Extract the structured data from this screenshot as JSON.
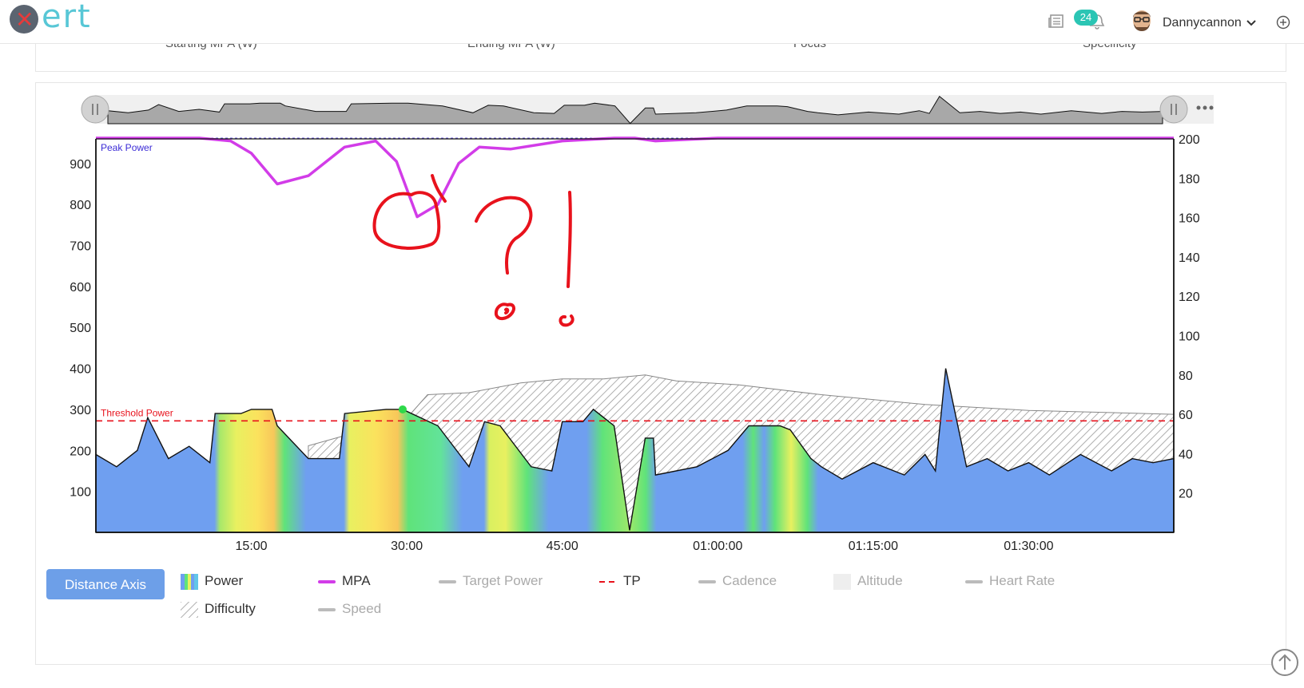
{
  "header": {
    "logo_text": "ert",
    "notification_count": "24",
    "username": "Dannycannon",
    "icons": [
      "news-icon",
      "bell-icon",
      "avatar",
      "chevron-down-icon",
      "add-circle-icon"
    ]
  },
  "prev_card": {
    "labels": [
      "Starting MPA (W)",
      "Ending MPA (W)",
      "Focus",
      "Specificity"
    ]
  },
  "chart_data": {
    "type": "area",
    "x_tick_labels": [
      "15:00",
      "30:00",
      "45:00",
      "01:00:00",
      "01:15:00",
      "01:30:00"
    ],
    "x_tick_minutes": [
      15,
      30,
      45,
      60,
      75,
      90
    ],
    "x_range_minutes": [
      0,
      104
    ],
    "y_left": {
      "ticks": [
        100,
        200,
        300,
        400,
        500,
        600,
        700,
        800,
        900
      ],
      "range": [
        0,
        960
      ]
    },
    "y_right": {
      "ticks": [
        20,
        40,
        60,
        80,
        100,
        120,
        140,
        160,
        180,
        200
      ],
      "range": [
        0,
        200
      ]
    },
    "annotations": [
      "Peak Power",
      "Threshold Power"
    ],
    "peak_power_w": 962,
    "threshold_power_w": 272,
    "series": [
      {
        "name": "MPA",
        "color": "#d23ce8",
        "x": [
          0,
          10,
          13,
          15,
          17.5,
          20.5,
          24,
          27,
          29,
          31,
          33,
          35,
          37,
          40,
          45,
          50,
          52,
          54,
          60,
          70,
          80,
          95,
          104
        ],
        "y": [
          962,
          962,
          955,
          925,
          850,
          870,
          940,
          955,
          905,
          770,
          800,
          900,
          940,
          935,
          955,
          962,
          962,
          955,
          962,
          962,
          962,
          962,
          962
        ]
      },
      {
        "name": "Difficulty",
        "color": "#999999",
        "x": [
          20.5,
          30,
          32,
          36,
          41,
          45,
          49,
          53,
          56,
          62,
          70,
          80,
          90,
          104
        ],
        "y": [
          44,
          58,
          70,
          71,
          76,
          78,
          78,
          80,
          77,
          75,
          70,
          65,
          62,
          60
        ]
      },
      {
        "name": "Power",
        "x": [
          0,
          2,
          4,
          5,
          7,
          9,
          11,
          11.5,
          14,
          15,
          17,
          17.5,
          20.5,
          23.5,
          24,
          28,
          29,
          29.6,
          33,
          36,
          37.5,
          39,
          42,
          44,
          45,
          47,
          48,
          50,
          51.5,
          53,
          53.8,
          54,
          58,
          61,
          63,
          66,
          67,
          69,
          70,
          72,
          75,
          78,
          80,
          81,
          82,
          84,
          86,
          88,
          90,
          92,
          95,
          98,
          100,
          102,
          104
        ],
        "y": [
          190,
          160,
          200,
          280,
          180,
          210,
          170,
          290,
          290,
          300,
          300,
          260,
          180,
          180,
          290,
          300,
          300,
          300,
          260,
          160,
          270,
          260,
          160,
          150,
          270,
          270,
          300,
          260,
          5,
          230,
          230,
          140,
          160,
          200,
          260,
          260,
          250,
          180,
          160,
          130,
          170,
          140,
          190,
          150,
          400,
          160,
          180,
          150,
          170,
          140,
          190,
          150,
          180,
          170,
          180
        ]
      }
    ],
    "legend": [
      {
        "name": "Power",
        "enabled": true
      },
      {
        "name": "MPA",
        "enabled": true
      },
      {
        "name": "Target Power",
        "enabled": false
      },
      {
        "name": "TP",
        "enabled": true
      },
      {
        "name": "Cadence",
        "enabled": false
      },
      {
        "name": "Altitude",
        "enabled": false
      },
      {
        "name": "Heart Rate",
        "enabled": false
      },
      {
        "name": "Difficulty",
        "enabled": true
      },
      {
        "name": "Speed",
        "enabled": false
      }
    ]
  },
  "legend_labels": {
    "power": "Power",
    "mpa": "MPA",
    "target_power": "Target Power",
    "tp": "TP",
    "cadence": "Cadence",
    "altitude": "Altitude",
    "heart_rate": "Heart Rate",
    "difficulty": "Difficulty",
    "speed": "Speed"
  },
  "buttons": {
    "distance_axis": "Distance Axis"
  },
  "handwriting": [
    "?",
    "!"
  ]
}
